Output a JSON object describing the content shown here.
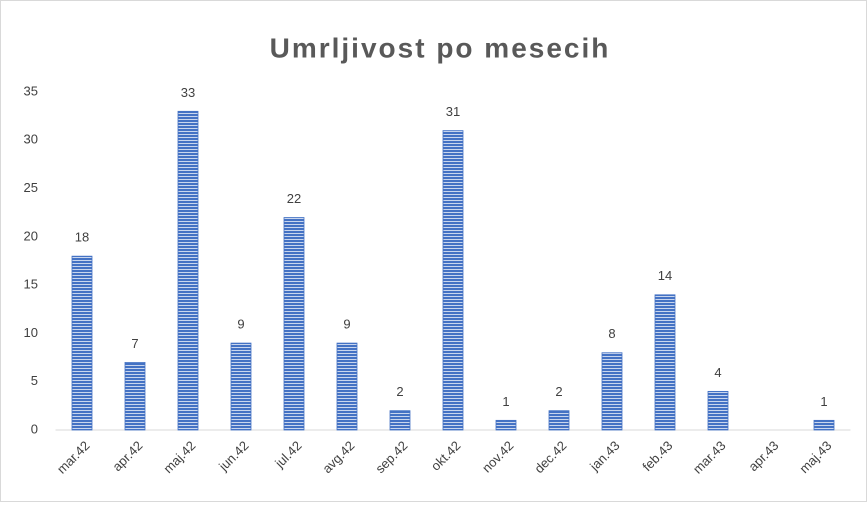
{
  "chart_data": {
    "type": "bar",
    "title": "Umrljivost po mesecih",
    "categories": [
      "mar.42",
      "apr.42",
      "maj.42",
      "jun.42",
      "jul.42",
      "avg.42",
      "sep.42",
      "okt.42",
      "nov.42",
      "dec.42",
      "jan.43",
      "feb.43",
      "mar.43",
      "apr.43",
      "maj.43"
    ],
    "values": [
      18,
      7,
      33,
      9,
      22,
      9,
      2,
      31,
      1,
      2,
      8,
      14,
      4,
      null,
      1
    ],
    "color": "#4472c4",
    "ylim": [
      0,
      35
    ],
    "yticks": [
      0,
      5,
      10,
      15,
      20,
      25,
      30,
      35
    ],
    "grid": false
  }
}
